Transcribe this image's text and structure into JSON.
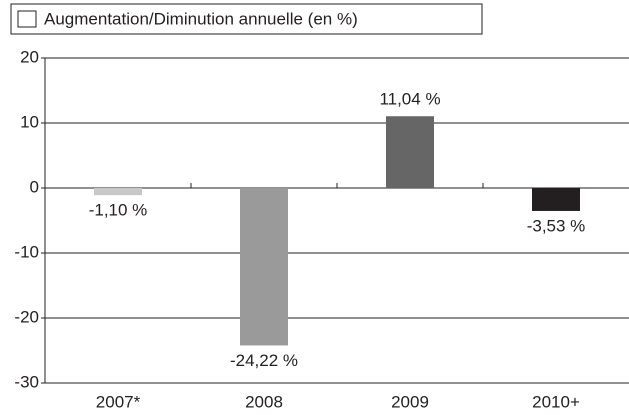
{
  "chart_data": {
    "type": "bar",
    "categories": [
      "2007*",
      "2008",
      "2009",
      "2010+"
    ],
    "series": [
      {
        "name": "Augmentation/Diminution annuelle (en %)",
        "legend_color": "#ffffff",
        "colors": [
          "#c8c8c8",
          "#9a9a9a",
          "#666666",
          "#231f20"
        ],
        "values": [
          -1.1,
          -24.22,
          11.04,
          -3.53
        ],
        "value_labels": [
          "-1,10 %",
          "-24,22 %",
          "11,04 %",
          "-3,53 %"
        ]
      }
    ],
    "ylim": [
      -30,
      20
    ],
    "yticks": [
      20,
      10,
      0,
      -10,
      -20,
      -30
    ],
    "grid": true,
    "legend": "top-left"
  }
}
